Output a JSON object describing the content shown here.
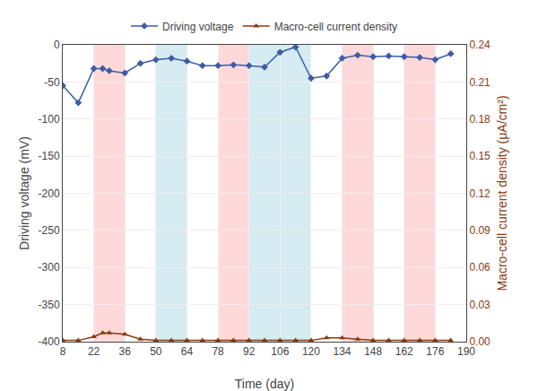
{
  "chart_data": {
    "type": "line",
    "xlabel": "Time (day)",
    "ylabel": "Driving voltage (mV)",
    "y2label": "Macro-cell current density (μA/cm²)",
    "xlim": [
      8,
      190
    ],
    "xticks": [
      8,
      22,
      36,
      50,
      64,
      78,
      92,
      106,
      120,
      134,
      148,
      162,
      176,
      190
    ],
    "ylim": [
      -400,
      0
    ],
    "yticks": [
      0,
      -50,
      -100,
      -150,
      -200,
      -250,
      -300,
      -350,
      -400
    ],
    "y2lim": [
      0,
      0.24
    ],
    "y2ticks": [
      {
        "value": 0,
        "label": "0.00"
      },
      0.03,
      0.06,
      0.09,
      0.12,
      0.15,
      0.18,
      0.21,
      0.24
    ],
    "x": [
      8,
      15,
      22,
      26,
      29,
      36,
      43,
      50,
      57,
      64,
      71,
      78,
      85,
      92,
      99,
      106,
      113,
      120,
      127,
      134,
      141,
      148,
      155,
      162,
      169,
      176,
      183
    ],
    "series": [
      {
        "name": "Driving voltage",
        "color": "#3C5CA6",
        "marker": "diamond",
        "values": [
          -55,
          -78,
          -32,
          -32,
          -35,
          -38,
          -25,
          -20,
          -18,
          -22,
          -28,
          -28,
          -27,
          -28,
          -30,
          -10,
          -3,
          -45,
          -42,
          -18,
          -14,
          -16,
          -15,
          -16,
          -17,
          -20,
          -12
        ]
      },
      {
        "name": "Macro-cell current density",
        "color": "#8B3A0F",
        "marker": "triangle-up",
        "axis": "y2",
        "values": [
          0.001,
          0.001,
          0.004,
          0.007,
          0.007,
          0.006,
          0.002,
          0.001,
          0.001,
          0.001,
          0.001,
          0.001,
          0.001,
          0.001,
          0.001,
          0.001,
          0.001,
          0.001,
          0.003,
          0.003,
          0.002,
          0.001,
          0.001,
          0.001,
          0.001,
          0.001,
          0.001
        ]
      }
    ],
    "bands": [
      {
        "xmin": 22,
        "xmax": 36,
        "color": "#ffb3b3"
      },
      {
        "xmin": 50,
        "xmax": 64,
        "color": "#add8e6"
      },
      {
        "xmin": 78,
        "xmax": 92,
        "color": "#ffb3b3"
      },
      {
        "xmin": 92,
        "xmax": 120,
        "color": "#add8e6"
      },
      {
        "xmin": 134,
        "xmax": 148,
        "color": "#ffb3b3"
      },
      {
        "xmin": 162,
        "xmax": 176,
        "color": "#ffb3b3"
      }
    ],
    "grid": true,
    "legend": "top"
  }
}
